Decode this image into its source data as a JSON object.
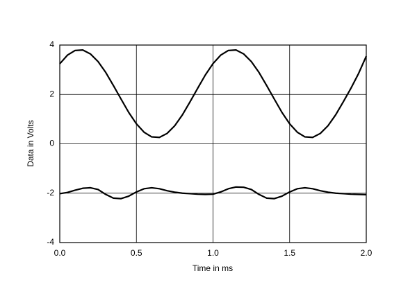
{
  "chart_data": {
    "type": "line",
    "x_label": "Time in ms",
    "y_label": "Data in Volts",
    "x": [
      0,
      0.05,
      0.1,
      0.15,
      0.2,
      0.25,
      0.3,
      0.35,
      0.4,
      0.45,
      0.5,
      0.55,
      0.6,
      0.65,
      0.7,
      0.75,
      0.8,
      0.85,
      0.9,
      0.95,
      1.0,
      1.05,
      1.1,
      1.15,
      1.2,
      1.25,
      1.3,
      1.35,
      1.4,
      1.45,
      1.5,
      1.55,
      1.6,
      1.65,
      1.7,
      1.75,
      1.8,
      1.85,
      1.9,
      1.95,
      2.0
    ],
    "series": [
      {
        "color": "#000000",
        "values": [
          3.24,
          3.59,
          3.78,
          3.8,
          3.64,
          3.33,
          2.89,
          2.36,
          1.81,
          1.27,
          0.81,
          0.47,
          0.28,
          0.26,
          0.42,
          0.73,
          1.17,
          1.7,
          2.25,
          2.79,
          3.25,
          3.59,
          3.78,
          3.8,
          3.64,
          3.33,
          2.89,
          2.36,
          1.81,
          1.27,
          0.81,
          0.47,
          0.28,
          0.26,
          0.42,
          0.73,
          1.17,
          1.7,
          2.25,
          2.85,
          3.55
        ]
      },
      {
        "color": "#000000",
        "values": [
          -2.02,
          -1.97,
          -1.88,
          -1.8,
          -1.78,
          -1.85,
          -2.05,
          -2.2,
          -2.22,
          -2.12,
          -1.95,
          -1.82,
          -1.78,
          -1.82,
          -1.9,
          -1.96,
          -2.0,
          -2.02,
          -2.04,
          -2.05,
          -2.04,
          -1.95,
          -1.82,
          -1.75,
          -1.76,
          -1.85,
          -2.05,
          -2.2,
          -2.22,
          -2.12,
          -1.95,
          -1.82,
          -1.78,
          -1.82,
          -1.9,
          -1.96,
          -2.0,
          -2.02,
          -2.04,
          -2.05,
          -2.06
        ]
      }
    ],
    "xlim": [
      0,
      2
    ],
    "xticks": [
      {
        "value": 0,
        "label": "0.0"
      },
      0.5,
      {
        "value": 1,
        "label": "1.0"
      },
      1.5,
      {
        "value": 2,
        "label": "2.0"
      }
    ],
    "ylim": [
      -4,
      4
    ],
    "yticks": [
      -4,
      -2,
      0,
      2,
      4
    ],
    "grid": true
  }
}
